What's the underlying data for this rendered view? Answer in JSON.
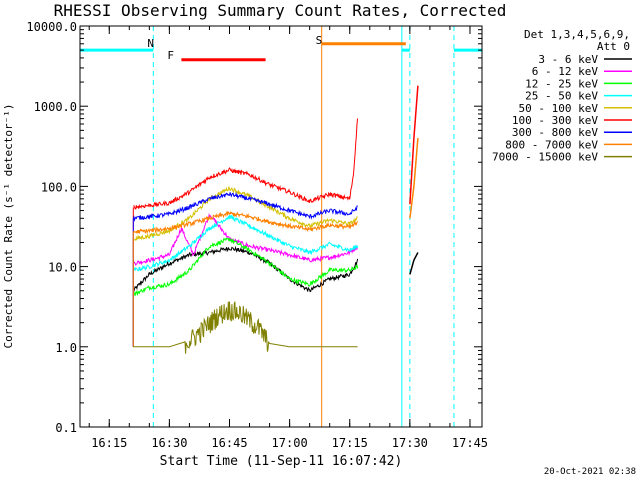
{
  "chart_data": {
    "type": "line",
    "title": "RHESSI Observing Summary Count Rates, Corrected",
    "xlabel": "Start Time (11-Sep-11 16:07:42)",
    "ylabel": "Corrected Count Rate (s⁻¹ detector⁻¹)",
    "y_scale": "log",
    "ylim": [
      0.1,
      10000
    ],
    "xlim": [
      "16:07:42",
      "17:48"
    ],
    "x_tick_labels": [
      "16:15",
      "16:30",
      "16:45",
      "17:00",
      "17:15",
      "17:30",
      "17:45"
    ],
    "y_tick_labels": [
      "0.1",
      "1.0",
      "10.0",
      "100.0",
      "1000.0",
      "10000.0"
    ],
    "legend_placement": "right",
    "legend_header": [
      "Det 1,3,4,5,6,9,",
      "Att 0"
    ],
    "grid": false,
    "series": [
      {
        "name": "3 - 6 keV",
        "color": "#000000",
        "x": [
          "16:21",
          "16:25",
          "16:30",
          "16:35",
          "16:40",
          "16:45",
          "16:50",
          "16:55",
          "17:00",
          "17:05",
          "17:10",
          "17:15",
          "17:17"
        ],
        "y": [
          5,
          8,
          11,
          14,
          15,
          17,
          15,
          11,
          7,
          5,
          7,
          8,
          12
        ]
      },
      {
        "name": "6 - 12 keV",
        "color": "#ff00ff",
        "x": [
          "16:21",
          "16:25",
          "16:30",
          "16:33",
          "16:36",
          "16:40",
          "16:45",
          "16:50",
          "16:55",
          "17:00",
          "17:05",
          "17:10",
          "17:15",
          "17:17"
        ],
        "y": [
          11,
          12,
          14,
          30,
          14,
          45,
          22,
          18,
          16,
          14,
          12,
          13,
          15,
          18
        ]
      },
      {
        "name": "12 - 25 keV",
        "color": "#00ff00",
        "x": [
          "16:21",
          "16:25",
          "16:30",
          "16:35",
          "16:40",
          "16:45",
          "16:50",
          "16:55",
          "17:00",
          "17:05",
          "17:10",
          "17:15",
          "17:17"
        ],
        "y": [
          4.5,
          5.5,
          6,
          9,
          18,
          22,
          16,
          11,
          7,
          6,
          9,
          9,
          10
        ]
      },
      {
        "name": "25 - 50 keV",
        "color": "#00ffff",
        "x": [
          "16:21",
          "16:25",
          "16:30",
          "16:35",
          "16:40",
          "16:45",
          "16:50",
          "16:55",
          "17:00",
          "17:05",
          "17:10",
          "17:15",
          "17:17"
        ],
        "y": [
          9,
          10,
          12,
          18,
          30,
          42,
          32,
          24,
          18,
          15,
          19,
          16,
          18
        ]
      },
      {
        "name": "50 - 100 keV",
        "color": "#d4c000",
        "x": [
          "16:21",
          "16:25",
          "16:30",
          "16:35",
          "16:40",
          "16:45",
          "16:50",
          "16:55",
          "17:00",
          "17:05",
          "17:10",
          "17:15",
          "17:17"
        ],
        "y": [
          22,
          24,
          28,
          40,
          70,
          95,
          75,
          55,
          40,
          32,
          38,
          34,
          40
        ]
      },
      {
        "name": "100 - 300 keV",
        "color": "#ff0000",
        "x": [
          "16:21",
          "16:25",
          "16:30",
          "16:35",
          "16:40",
          "16:45",
          "16:50",
          "16:55",
          "17:00",
          "17:05",
          "17:10",
          "17:15",
          "17:16",
          "17:17"
        ],
        "y": [
          55,
          58,
          62,
          85,
          130,
          160,
          140,
          105,
          85,
          65,
          80,
          70,
          150,
          800
        ]
      },
      {
        "name": "300 - 800 keV",
        "color": "#0000ff",
        "x": [
          "16:21",
          "16:25",
          "16:30",
          "16:35",
          "16:40",
          "16:45",
          "16:50",
          "16:55",
          "17:00",
          "17:05",
          "17:10",
          "17:15",
          "17:17"
        ],
        "y": [
          40,
          42,
          45,
          55,
          70,
          80,
          70,
          60,
          50,
          42,
          50,
          45,
          55
        ]
      },
      {
        "name": "800 - 7000 keV",
        "color": "#ff8000",
        "x": [
          "16:21",
          "16:25",
          "16:30",
          "16:35",
          "16:40",
          "16:45",
          "16:50",
          "16:55",
          "17:00",
          "17:05",
          "17:10",
          "17:15",
          "17:17"
        ],
        "y": [
          27,
          28,
          30,
          34,
          40,
          46,
          42,
          36,
          32,
          29,
          33,
          31,
          35
        ]
      },
      {
        "name": "7000 - 15000 keV",
        "color": "#808000",
        "x": [
          "16:21",
          "16:25",
          "16:30",
          "16:35",
          "16:38",
          "16:42",
          "16:45",
          "16:48",
          "16:52",
          "16:55",
          "17:00",
          "17:05",
          "17:10",
          "17:15",
          "17:17"
        ],
        "y": [
          1,
          1,
          1,
          1.2,
          1.6,
          2.5,
          3,
          2.6,
          1.8,
          1.1,
          1,
          1,
          1,
          1,
          1
        ]
      }
    ],
    "late_segment": {
      "x": [
        "17:30",
        "17:31",
        "17:32"
      ],
      "series_y": {
        "100 - 300 keV": [
          60,
          400,
          1800
        ],
        "800 - 7000 keV": [
          40,
          100,
          400
        ],
        "3 - 6 keV": [
          8,
          12,
          15
        ]
      }
    },
    "markers": [
      {
        "label": "N",
        "color": "#00ffff",
        "x": "16:26"
      },
      {
        "label": "F",
        "color": "#ff0000",
        "x": "16:31"
      },
      {
        "label": "S",
        "color": "#ff8000",
        "x": "17:08"
      }
    ],
    "night_bars": [
      {
        "x": [
          "16:07:42",
          "16:26"
        ],
        "color": "#00ffff",
        "y": 5000
      },
      {
        "x": [
          "17:28",
          "17:30"
        ],
        "color": "#00ffff",
        "y": 5000
      },
      {
        "x": [
          "17:41",
          "17:48"
        ],
        "color": "#00ffff",
        "y": 5000
      }
    ],
    "flare_bar": {
      "x": [
        "16:33",
        "16:54"
      ],
      "color": "#ff0000",
      "y": 3800
    },
    "saa_bar": {
      "x": [
        "17:08",
        "17:29"
      ],
      "color": "#ff8000",
      "y": 6000
    },
    "vlines_solid": [
      {
        "x": "16:07:42",
        "color": "#00ffff"
      },
      {
        "x": "17:08",
        "color": "#ff8000"
      },
      {
        "x": "17:28",
        "color": "#00ffff"
      }
    ],
    "vlines_dashed": [
      {
        "x": "16:26",
        "color": "#00ffff"
      },
      {
        "x": "17:30",
        "color": "#00ffff"
      },
      {
        "x": "17:41",
        "color": "#00ffff"
      }
    ]
  },
  "timestamp": "20-Oct-2021 02:38"
}
